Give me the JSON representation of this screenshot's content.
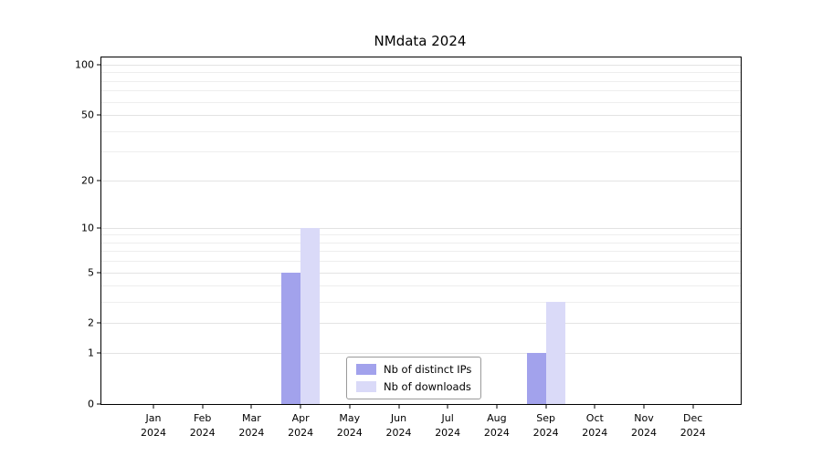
{
  "chart_data": {
    "type": "bar",
    "title": "NMdata 2024",
    "categories": [
      "Jan",
      "Feb",
      "Mar",
      "Apr",
      "May",
      "Jun",
      "Jul",
      "Aug",
      "Sep",
      "Oct",
      "Nov",
      "Dec"
    ],
    "year_label": "2024",
    "series": [
      {
        "name": "Nb of distinct IPs",
        "color": "#a2a2ec",
        "values": [
          0,
          0,
          0,
          5,
          0,
          0,
          0,
          0,
          1,
          0,
          0,
          0
        ]
      },
      {
        "name": "Nb of downloads",
        "color": "#dadaf8",
        "values": [
          0,
          0,
          0,
          10,
          0,
          0,
          0,
          0,
          3,
          0,
          0,
          0
        ]
      }
    ],
    "y_scale": "log1p",
    "ylim": [
      0,
      100
    ],
    "y_ticks": [
      0,
      1,
      2,
      5,
      10,
      20,
      50,
      100
    ],
    "y_gridlines_minor": [
      1,
      2,
      3,
      4,
      5,
      6,
      7,
      8,
      9,
      10,
      20,
      30,
      40,
      50,
      60,
      70,
      80,
      90,
      100
    ],
    "xlabel": "",
    "ylabel": "",
    "legend_position": "lower center",
    "grid": "horizontal"
  }
}
